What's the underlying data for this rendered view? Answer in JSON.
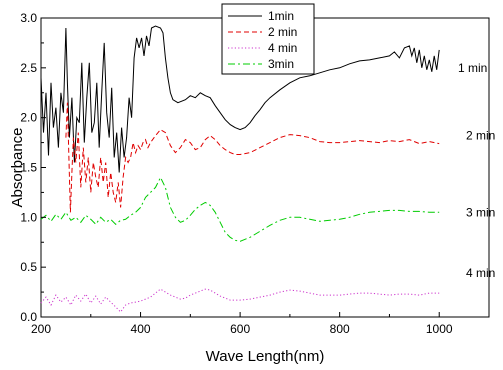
{
  "chart_data": {
    "type": "line",
    "title": "",
    "xlabel": "Wave Length(nm)",
    "ylabel": "Absorbance",
    "xlim": [
      200,
      1100
    ],
    "ylim": [
      0.0,
      3.0
    ],
    "xticks": [
      "200",
      "400",
      "600",
      "800",
      "1000"
    ],
    "yticks": [
      "0.0",
      "0.5",
      "1.0",
      "1.5",
      "2.0",
      "2.5",
      "3.0"
    ],
    "legend_position": "top-center",
    "grid": false,
    "series": [
      {
        "name": "1min",
        "annotation": "1 min",
        "color": "#000000",
        "dash": "solid",
        "points": [
          [
            200,
            2.4
          ],
          [
            205,
            1.85
          ],
          [
            210,
            2.25
          ],
          [
            215,
            1.62
          ],
          [
            220,
            2.35
          ],
          [
            225,
            1.9
          ],
          [
            230,
            2.1
          ],
          [
            235,
            1.7
          ],
          [
            240,
            2.25
          ],
          [
            245,
            2.05
          ],
          [
            250,
            2.9
          ],
          [
            253,
            2.35
          ],
          [
            257,
            1.8
          ],
          [
            262,
            2.2
          ],
          [
            267,
            1.55
          ],
          [
            272,
            2.0
          ],
          [
            277,
            1.95
          ],
          [
            282,
            2.55
          ],
          [
            287,
            1.75
          ],
          [
            292,
            2.2
          ],
          [
            297,
            2.55
          ],
          [
            302,
            1.85
          ],
          [
            307,
            1.95
          ],
          [
            312,
            2.35
          ],
          [
            317,
            1.7
          ],
          [
            322,
            2.25
          ],
          [
            327,
            2.75
          ],
          [
            332,
            2.05
          ],
          [
            337,
            1.8
          ],
          [
            342,
            2.3
          ],
          [
            347,
            1.6
          ],
          [
            352,
            1.85
          ],
          [
            357,
            1.45
          ],
          [
            362,
            1.9
          ],
          [
            367,
            1.6
          ],
          [
            372,
            1.8
          ],
          [
            377,
            2.2
          ],
          [
            382,
            2.0
          ],
          [
            387,
            2.6
          ],
          [
            392,
            2.8
          ],
          [
            397,
            2.7
          ],
          [
            402,
            2.8
          ],
          [
            407,
            2.62
          ],
          [
            412,
            2.82
          ],
          [
            417,
            2.72
          ],
          [
            422,
            2.9
          ],
          [
            430,
            2.92
          ],
          [
            440,
            2.9
          ],
          [
            445,
            2.85
          ],
          [
            450,
            2.6
          ],
          [
            455,
            2.4
          ],
          [
            460,
            2.25
          ],
          [
            465,
            2.18
          ],
          [
            475,
            2.15
          ],
          [
            490,
            2.18
          ],
          [
            500,
            2.22
          ],
          [
            510,
            2.2
          ],
          [
            520,
            2.25
          ],
          [
            530,
            2.22
          ],
          [
            540,
            2.2
          ],
          [
            550,
            2.12
          ],
          [
            560,
            2.05
          ],
          [
            570,
            1.98
          ],
          [
            580,
            1.93
          ],
          [
            590,
            1.9
          ],
          [
            600,
            1.88
          ],
          [
            610,
            1.9
          ],
          [
            620,
            1.95
          ],
          [
            630,
            2.02
          ],
          [
            640,
            2.08
          ],
          [
            650,
            2.15
          ],
          [
            660,
            2.2
          ],
          [
            680,
            2.28
          ],
          [
            700,
            2.35
          ],
          [
            720,
            2.4
          ],
          [
            740,
            2.42
          ],
          [
            760,
            2.45
          ],
          [
            780,
            2.48
          ],
          [
            800,
            2.5
          ],
          [
            820,
            2.54
          ],
          [
            840,
            2.57
          ],
          [
            860,
            2.58
          ],
          [
            880,
            2.6
          ],
          [
            900,
            2.62
          ],
          [
            910,
            2.66
          ],
          [
            920,
            2.6
          ],
          [
            930,
            2.7
          ],
          [
            940,
            2.72
          ],
          [
            945,
            2.62
          ],
          [
            950,
            2.7
          ],
          [
            955,
            2.55
          ],
          [
            960,
            2.68
          ],
          [
            965,
            2.5
          ],
          [
            970,
            2.62
          ],
          [
            975,
            2.48
          ],
          [
            980,
            2.58
          ],
          [
            985,
            2.46
          ],
          [
            990,
            2.62
          ],
          [
            995,
            2.48
          ],
          [
            1000,
            2.68
          ]
        ]
      },
      {
        "name": "2 min",
        "annotation": "2 min",
        "color": "#e00000",
        "dash": "dashed",
        "points": [
          [
            250,
            1.8
          ],
          [
            253,
            2.15
          ],
          [
            256,
            1.6
          ],
          [
            259,
            1.05
          ],
          [
            262,
            1.45
          ],
          [
            265,
            1.8
          ],
          [
            270,
            1.55
          ],
          [
            275,
            1.85
          ],
          [
            280,
            1.3
          ],
          [
            285,
            1.7
          ],
          [
            290,
            1.35
          ],
          [
            295,
            1.6
          ],
          [
            300,
            1.25
          ],
          [
            305,
            1.55
          ],
          [
            310,
            1.4
          ],
          [
            315,
            1.3
          ],
          [
            320,
            1.6
          ],
          [
            325,
            1.35
          ],
          [
            330,
            1.55
          ],
          [
            335,
            1.2
          ],
          [
            340,
            1.45
          ],
          [
            345,
            1.25
          ],
          [
            350,
            1.15
          ],
          [
            355,
            1.35
          ],
          [
            360,
            1.1
          ],
          [
            365,
            1.4
          ],
          [
            370,
            1.6
          ],
          [
            375,
            1.55
          ],
          [
            380,
            1.6
          ],
          [
            385,
            1.75
          ],
          [
            390,
            1.65
          ],
          [
            395,
            1.72
          ],
          [
            400,
            1.68
          ],
          [
            405,
            1.75
          ],
          [
            410,
            1.78
          ],
          [
            415,
            1.7
          ],
          [
            420,
            1.75
          ],
          [
            430,
            1.82
          ],
          [
            440,
            1.88
          ],
          [
            450,
            1.85
          ],
          [
            460,
            1.72
          ],
          [
            470,
            1.65
          ],
          [
            480,
            1.7
          ],
          [
            490,
            1.78
          ],
          [
            500,
            1.75
          ],
          [
            510,
            1.68
          ],
          [
            520,
            1.7
          ],
          [
            530,
            1.78
          ],
          [
            540,
            1.82
          ],
          [
            550,
            1.78
          ],
          [
            560,
            1.72
          ],
          [
            570,
            1.68
          ],
          [
            580,
            1.65
          ],
          [
            590,
            1.63
          ],
          [
            600,
            1.63
          ],
          [
            620,
            1.65
          ],
          [
            640,
            1.7
          ],
          [
            660,
            1.75
          ],
          [
            680,
            1.8
          ],
          [
            700,
            1.83
          ],
          [
            720,
            1.82
          ],
          [
            740,
            1.8
          ],
          [
            760,
            1.76
          ],
          [
            780,
            1.75
          ],
          [
            800,
            1.75
          ],
          [
            820,
            1.76
          ],
          [
            840,
            1.77
          ],
          [
            860,
            1.76
          ],
          [
            880,
            1.75
          ],
          [
            900,
            1.77
          ],
          [
            920,
            1.76
          ],
          [
            940,
            1.78
          ],
          [
            960,
            1.74
          ],
          [
            980,
            1.76
          ],
          [
            1000,
            1.74
          ]
        ]
      },
      {
        "name": "4 min",
        "annotation": "4 min",
        "color": "#cc33cc",
        "dash": "dotted",
        "points": [
          [
            200,
            0.14
          ],
          [
            210,
            0.2
          ],
          [
            220,
            0.12
          ],
          [
            230,
            0.22
          ],
          [
            240,
            0.15
          ],
          [
            250,
            0.2
          ],
          [
            260,
            0.12
          ],
          [
            270,
            0.22
          ],
          [
            280,
            0.16
          ],
          [
            290,
            0.23
          ],
          [
            300,
            0.14
          ],
          [
            310,
            0.21
          ],
          [
            320,
            0.13
          ],
          [
            330,
            0.2
          ],
          [
            340,
            0.15
          ],
          [
            350,
            0.1
          ],
          [
            360,
            0.05
          ],
          [
            370,
            0.12
          ],
          [
            380,
            0.14
          ],
          [
            390,
            0.15
          ],
          [
            400,
            0.16
          ],
          [
            410,
            0.18
          ],
          [
            420,
            0.2
          ],
          [
            430,
            0.24
          ],
          [
            440,
            0.28
          ],
          [
            450,
            0.25
          ],
          [
            460,
            0.22
          ],
          [
            470,
            0.2
          ],
          [
            480,
            0.18
          ],
          [
            490,
            0.19
          ],
          [
            500,
            0.22
          ],
          [
            510,
            0.24
          ],
          [
            520,
            0.26
          ],
          [
            530,
            0.28
          ],
          [
            540,
            0.27
          ],
          [
            550,
            0.24
          ],
          [
            560,
            0.21
          ],
          [
            570,
            0.19
          ],
          [
            580,
            0.17
          ],
          [
            600,
            0.17
          ],
          [
            620,
            0.18
          ],
          [
            640,
            0.2
          ],
          [
            660,
            0.22
          ],
          [
            680,
            0.25
          ],
          [
            700,
            0.27
          ],
          [
            720,
            0.26
          ],
          [
            740,
            0.24
          ],
          [
            760,
            0.22
          ],
          [
            780,
            0.22
          ],
          [
            800,
            0.22
          ],
          [
            820,
            0.23
          ],
          [
            840,
            0.24
          ],
          [
            860,
            0.24
          ],
          [
            880,
            0.23
          ],
          [
            900,
            0.22
          ],
          [
            920,
            0.23
          ],
          [
            940,
            0.23
          ],
          [
            960,
            0.22
          ],
          [
            980,
            0.24
          ],
          [
            1000,
            0.24
          ]
        ]
      },
      {
        "name": "3min",
        "annotation": "3 min",
        "color": "#00cc00",
        "dash": "dashdot",
        "points": [
          [
            200,
            0.98
          ],
          [
            210,
            1.02
          ],
          [
            220,
            0.96
          ],
          [
            230,
            1.03
          ],
          [
            240,
            0.98
          ],
          [
            250,
            1.05
          ],
          [
            260,
            0.97
          ],
          [
            270,
            1.0
          ],
          [
            280,
            0.95
          ],
          [
            290,
            1.02
          ],
          [
            300,
            0.98
          ],
          [
            310,
            0.93
          ],
          [
            320,
            1.0
          ],
          [
            330,
            0.95
          ],
          [
            340,
            0.98
          ],
          [
            350,
            0.93
          ],
          [
            360,
            0.97
          ],
          [
            370,
            0.98
          ],
          [
            380,
            1.02
          ],
          [
            390,
            1.05
          ],
          [
            400,
            1.1
          ],
          [
            410,
            1.2
          ],
          [
            420,
            1.25
          ],
          [
            430,
            1.3
          ],
          [
            440,
            1.4
          ],
          [
            450,
            1.3
          ],
          [
            460,
            1.1
          ],
          [
            470,
            1.0
          ],
          [
            480,
            0.95
          ],
          [
            490,
            0.97
          ],
          [
            500,
            1.02
          ],
          [
            510,
            1.08
          ],
          [
            520,
            1.12
          ],
          [
            530,
            1.15
          ],
          [
            540,
            1.12
          ],
          [
            550,
            1.05
          ],
          [
            560,
            0.95
          ],
          [
            570,
            0.85
          ],
          [
            580,
            0.8
          ],
          [
            590,
            0.77
          ],
          [
            600,
            0.76
          ],
          [
            620,
            0.8
          ],
          [
            640,
            0.86
          ],
          [
            660,
            0.92
          ],
          [
            680,
            0.97
          ],
          [
            700,
            1.0
          ],
          [
            720,
            1.0
          ],
          [
            740,
            0.98
          ],
          [
            760,
            0.96
          ],
          [
            780,
            0.97
          ],
          [
            800,
            0.98
          ],
          [
            820,
            1.0
          ],
          [
            840,
            1.03
          ],
          [
            860,
            1.05
          ],
          [
            880,
            1.06
          ],
          [
            900,
            1.07
          ],
          [
            920,
            1.07
          ],
          [
            940,
            1.06
          ],
          [
            960,
            1.06
          ],
          [
            980,
            1.05
          ],
          [
            1000,
            1.05
          ]
        ]
      }
    ]
  }
}
